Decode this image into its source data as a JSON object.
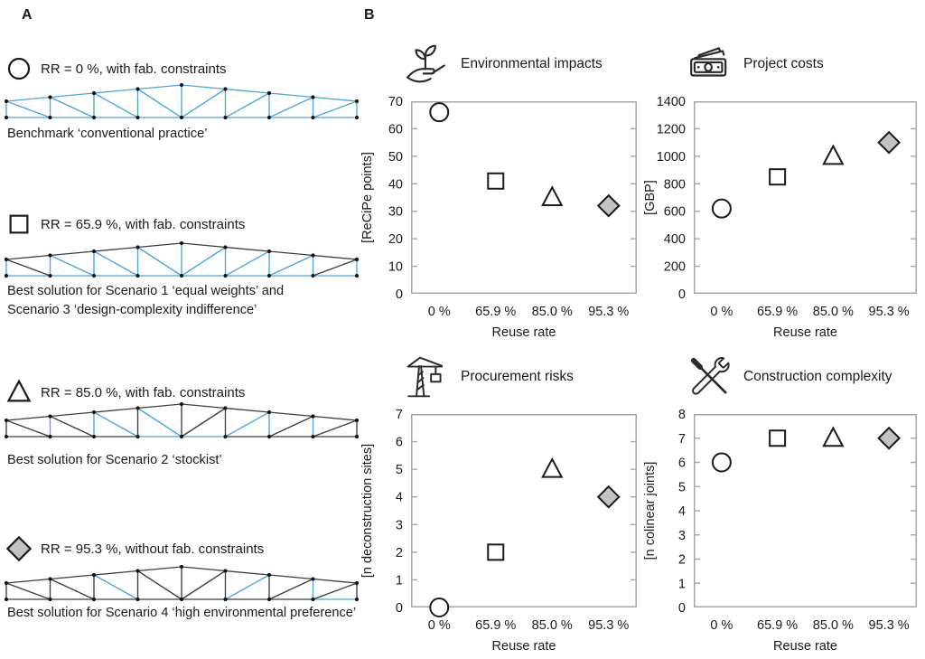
{
  "figure": {
    "panel_a_label": "A",
    "panel_b_label": "B"
  },
  "colors": {
    "member_reused_blue": "#4aa5da",
    "member_new_dark": "#3d3d3d",
    "node_black": "#141414",
    "marker_stroke": "#1a1a1a",
    "marker_fill": "#ffffff",
    "diamond_fill": "#c3c3c3",
    "frame_gray": "#a6a6a6",
    "icon_stroke": "#2b2b2b"
  },
  "panel_a": {
    "trusses": [
      {
        "marker": "circle",
        "legend": "RR = 0 %, with fab. constraints",
        "caption_lines": [
          "Benchmark ‘conventional practice’"
        ],
        "blue_members": "all"
      },
      {
        "marker": "square",
        "legend": "RR = 65.9 %, with fab. constraints",
        "caption_lines": [
          "Best solution for Scenario 1 ‘equal weights’ and",
          "Scenario 3 ‘design-complexity indifference’"
        ],
        "blue_members": [
          "b0",
          "b1",
          "b2",
          "b3",
          "b4",
          "b5",
          "b6",
          "b7",
          "v0",
          "v1",
          "v2",
          "v3",
          "v4",
          "v5",
          "v6",
          "v7",
          "v8",
          "d1",
          "d2",
          "d3",
          "d4",
          "d5",
          "d6"
        ]
      },
      {
        "marker": "triangle",
        "legend": "RR = 85.0 %, with fab. constraints",
        "caption_lines": [
          "Best solution for Scenario 2 ‘stockist’"
        ],
        "blue_members": [
          "v1",
          "v2",
          "d2",
          "d3",
          "b3",
          "b4",
          "d5",
          "v6",
          "v7"
        ]
      },
      {
        "marker": "diamond",
        "legend": "RR = 95.3 %, without fab. constraints",
        "caption_lines": [
          "Best solution for Scenario 4 ‘high environmental preference’"
        ],
        "blue_members": [
          "d2",
          "d5",
          "v7",
          "b7"
        ]
      }
    ]
  },
  "chart_data": [
    {
      "type": "scatter",
      "id": "environmental-impacts",
      "icon": "plant-hand-icon",
      "title": "Environmental impacts",
      "ylabel": "[ReCiPe points]",
      "xlabel": "Reuse rate",
      "categories": [
        "0 %",
        "65.9 %",
        "85.0 %",
        "95.3 %"
      ],
      "markers": [
        "circle",
        "square",
        "triangle",
        "diamond"
      ],
      "values": [
        66,
        41,
        35,
        32
      ],
      "ylim": [
        0,
        70
      ],
      "yticks": [
        0,
        10,
        20,
        30,
        40,
        50,
        60,
        70
      ]
    },
    {
      "type": "scatter",
      "id": "project-costs",
      "icon": "banknotes-icon",
      "title": "Project costs",
      "ylabel": "[GBP]",
      "xlabel": "Reuse rate",
      "categories": [
        "0 %",
        "65.9 %",
        "85.0 %",
        "95.3 %"
      ],
      "markers": [
        "circle",
        "square",
        "triangle",
        "diamond"
      ],
      "values": [
        620,
        850,
        1000,
        1100
      ],
      "ylim": [
        0,
        1400
      ],
      "yticks": [
        0,
        200,
        400,
        600,
        800,
        1000,
        1200,
        1400
      ]
    },
    {
      "type": "scatter",
      "id": "procurement-risks",
      "icon": "crane-icon",
      "title": "Procurement risks",
      "ylabel": "[n deconstruction sites]",
      "xlabel": "Reuse rate",
      "categories": [
        "0 %",
        "65.9 %",
        "85.0 %",
        "95.3 %"
      ],
      "markers": [
        "circle",
        "square",
        "triangle",
        "diamond"
      ],
      "values": [
        0,
        2,
        5,
        4
      ],
      "ylim": [
        0,
        7
      ],
      "yticks": [
        0,
        1,
        2,
        3,
        4,
        5,
        6,
        7
      ]
    },
    {
      "type": "scatter",
      "id": "construction-complexity",
      "icon": "tools-icon",
      "title": "Construction complexity",
      "ylabel": "[n colinear joints]",
      "xlabel": "Reuse rate",
      "categories": [
        "0 %",
        "65.9 %",
        "85.0 %",
        "95.3 %"
      ],
      "markers": [
        "circle",
        "square",
        "triangle",
        "diamond"
      ],
      "values": [
        6,
        7,
        7,
        7
      ],
      "ylim": [
        0,
        8
      ],
      "yticks": [
        0,
        1,
        2,
        3,
        4,
        5,
        6,
        7,
        8
      ]
    }
  ]
}
